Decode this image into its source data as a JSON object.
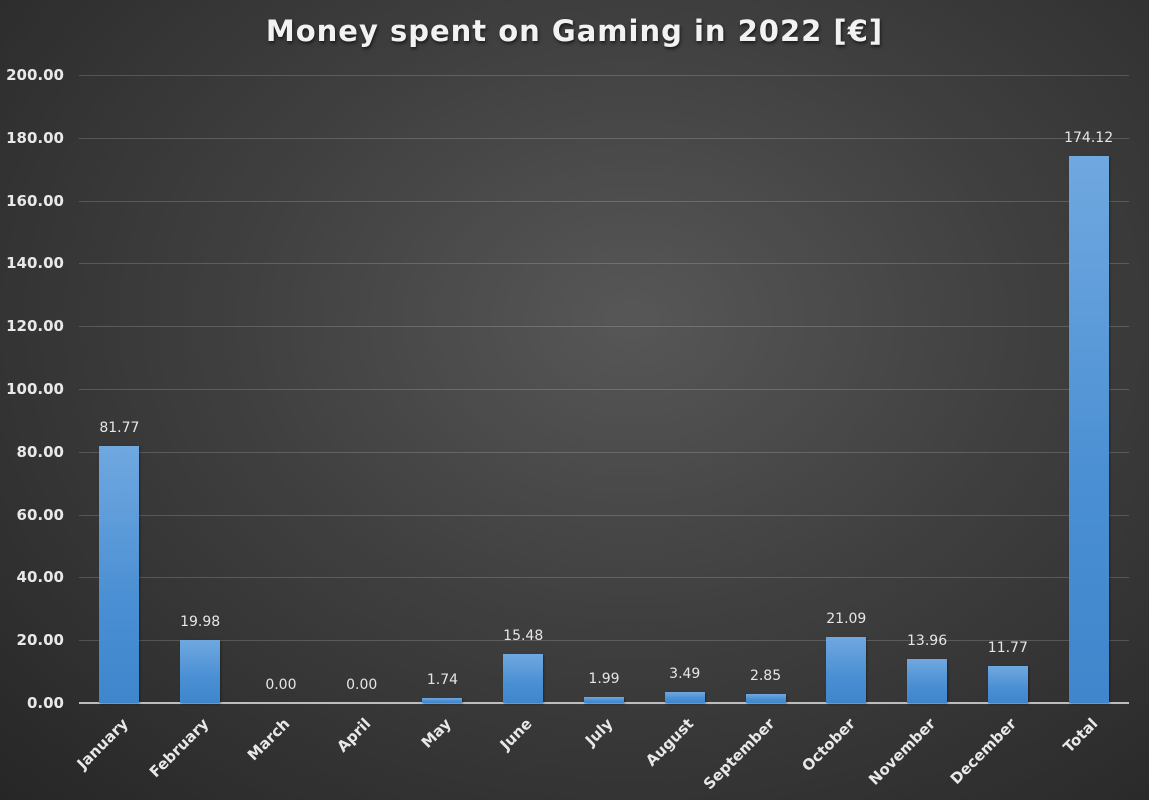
{
  "chart_data": {
    "type": "bar",
    "title": "Money spent on Gaming in 2022 [€]",
    "xlabel": "",
    "ylabel": "",
    "categories": [
      "January",
      "February",
      "March",
      "April",
      "May",
      "June",
      "July",
      "August",
      "September",
      "October",
      "November",
      "December",
      "Total"
    ],
    "values": [
      81.77,
      19.98,
      0.0,
      0.0,
      1.74,
      15.48,
      1.99,
      3.49,
      2.85,
      21.09,
      13.96,
      11.77,
      174.12
    ],
    "value_labels": [
      "81.77",
      "19.98",
      "0.00",
      "0.00",
      "1.74",
      "15.48",
      "1.99",
      "3.49",
      "2.85",
      "21.09",
      "13.96",
      "11.77",
      "174.12"
    ],
    "ylim": [
      0,
      200
    ],
    "yticks": [
      "0.00",
      "20.00",
      "40.00",
      "60.00",
      "80.00",
      "100.00",
      "120.00",
      "140.00",
      "160.00",
      "180.00",
      "200.00"
    ],
    "grid": true,
    "legend": null,
    "bar_color": "#5b9bd5",
    "background": "#3a3a3a"
  }
}
